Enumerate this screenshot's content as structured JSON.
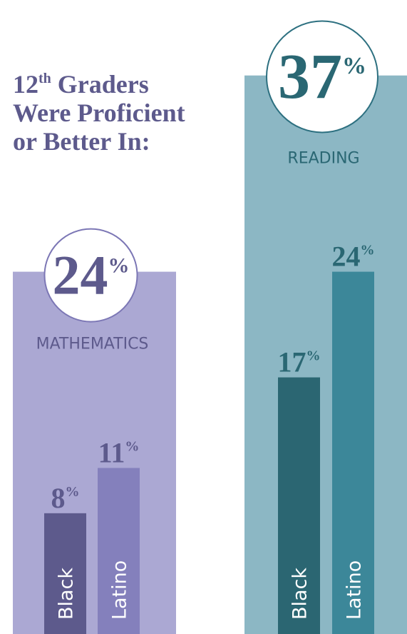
{
  "title_lines": [
    "12th Graders",
    "Were Proficient",
    "or Better In:"
  ],
  "title_color": "#5d5a8c",
  "chart_data": [
    {
      "type": "bar",
      "title": "MATHEMATICS",
      "total": 24,
      "total_label": "24%",
      "background": "#aba8d3",
      "accent": "#5d5a8c",
      "ring": "#7c77b5",
      "categories": [
        "Black",
        "Latino"
      ],
      "values": [
        8,
        11
      ],
      "value_labels": [
        "8%",
        "11%"
      ],
      "colors": [
        "#5d5a8c",
        "#8480bc"
      ],
      "ylim": [
        0,
        42
      ]
    },
    {
      "type": "bar",
      "title": "READING",
      "total": 37,
      "total_label": "37%",
      "background": "#8cb7c4",
      "accent": "#2a6773",
      "ring": "#2d7080",
      "categories": [
        "Black",
        "Latino"
      ],
      "values": [
        17,
        24
      ],
      "value_labels": [
        "17%",
        "24%"
      ],
      "colors": [
        "#2b6672",
        "#3c8799"
      ],
      "ylim": [
        0,
        42
      ]
    }
  ]
}
